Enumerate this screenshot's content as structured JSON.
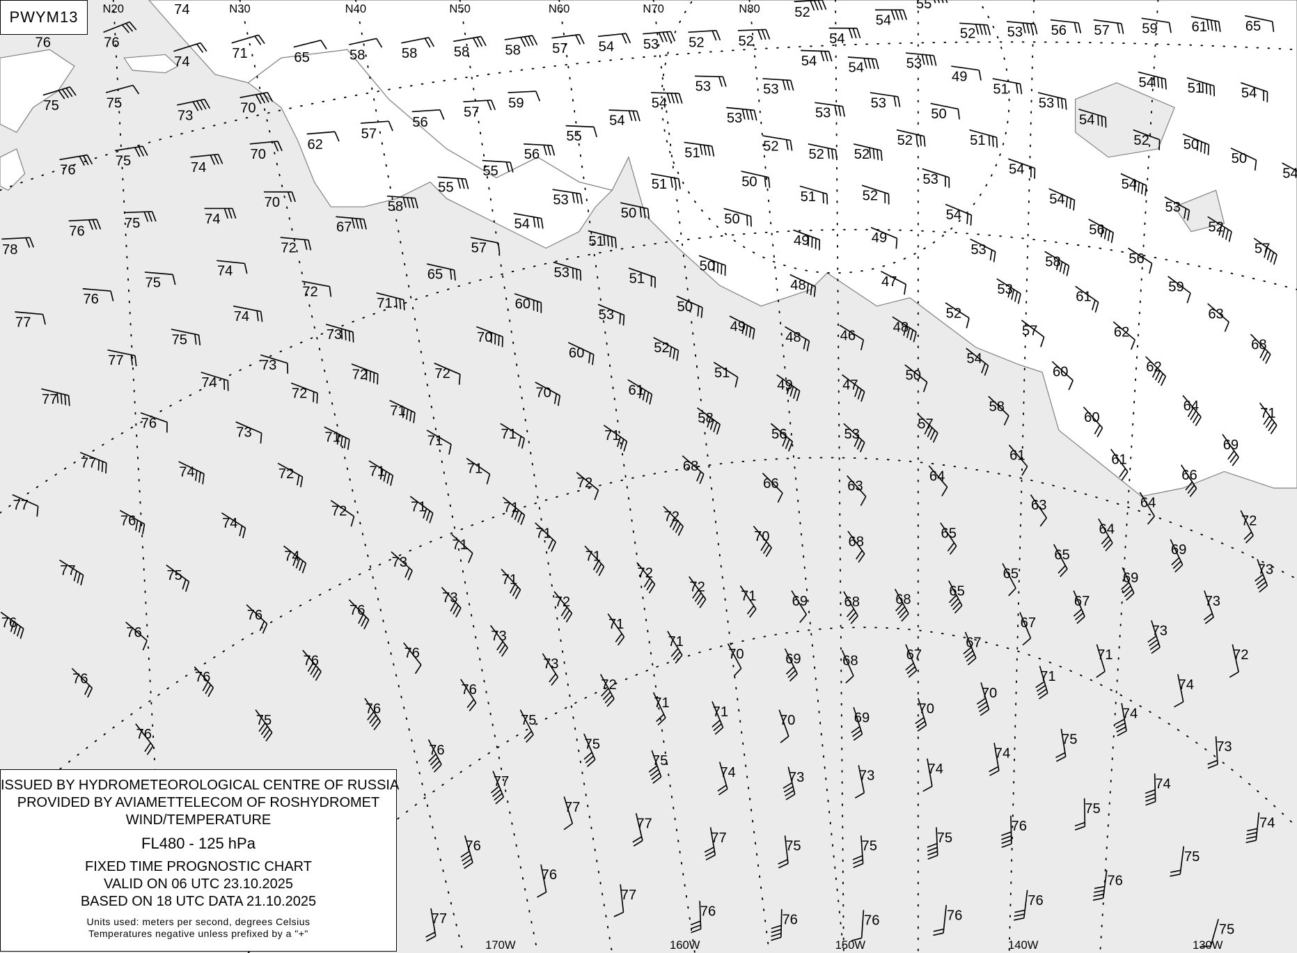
{
  "chart_id": "PWYM13",
  "legend": {
    "issuer": "ISSUED BY HYDROMETEOROLOGICAL CENTRE OF RUSSIA",
    "provider": "PROVIDED BY AVIAMETTELECOM OF ROSHYDROMET",
    "product": "WIND/TEMPERATURE",
    "level": "FL480 - 125 hPa",
    "chart_type": "FIXED TIME PROGNOSTIC CHART",
    "valid": "VALID ON 06 UTC 23.10.2025",
    "based": "BASED ON 18 UTC DATA 21.10.2025",
    "units": "Units used: meters per second, degrees Celsius",
    "note": "Temperatures negative unless prefixed by a \"+\""
  },
  "latitude_labels": [
    "N20",
    "N30",
    "N40",
    "N50",
    "N60",
    "N70",
    "N80"
  ],
  "longitude_labels": [
    "170W",
    "160W",
    "150W",
    "140W",
    "130W"
  ],
  "colors": {
    "sea": "#ebebeb",
    "land": "#ffffff",
    "coast": "#808080",
    "ink": "#000000"
  },
  "temperatures": [
    74,
    76,
    76,
    74,
    71,
    65,
    58,
    58,
    58,
    58,
    57,
    54,
    53,
    52,
    52,
    52,
    54,
    54,
    55,
    52,
    53,
    56,
    57,
    59,
    61,
    65,
    75,
    75,
    73,
    70,
    57,
    59,
    56,
    57,
    62,
    70,
    74,
    75,
    76,
    55,
    54,
    54,
    53,
    53,
    54,
    54,
    53,
    53,
    53,
    52,
    52,
    52,
    53,
    49,
    50,
    53,
    51,
    51,
    52,
    54,
    54,
    54,
    51,
    54,
    52,
    50,
    50,
    54,
    55,
    55,
    56,
    53,
    50,
    51,
    51,
    50,
    51,
    52,
    53,
    54,
    54,
    54,
    53,
    52,
    57,
    58,
    67,
    70,
    74,
    75,
    76,
    78,
    54,
    57,
    51,
    50,
    49,
    49,
    53,
    56,
    56,
    72,
    74,
    75,
    76,
    77,
    65,
    53,
    51,
    50,
    48,
    47,
    53,
    58,
    61,
    59,
    72,
    71,
    60,
    74,
    73,
    70,
    53,
    50,
    49,
    48,
    46,
    48,
    52,
    57,
    62,
    63,
    75,
    73,
    77,
    72,
    72,
    60,
    52,
    51,
    49,
    47,
    50,
    54,
    60,
    62,
    68,
    74,
    77,
    72,
    71,
    70,
    61,
    58,
    58,
    64,
    76,
    73,
    71,
    71,
    71,
    71,
    56,
    53,
    57,
    60,
    71,
    77,
    74,
    72,
    71,
    71,
    72,
    68,
    66,
    63,
    64,
    61,
    61,
    69,
    66,
    77,
    76,
    74,
    72,
    71,
    71,
    72,
    70,
    68,
    65,
    63,
    64,
    72,
    64,
    77,
    75,
    74,
    73,
    71,
    71,
    71,
    72,
    72,
    71,
    69,
    68,
    68,
    65,
    65,
    65,
    69,
    73,
    71,
    72,
    73,
    69,
    67,
    73,
    76,
    76,
    76,
    76,
    73,
    71,
    71,
    70,
    69,
    68,
    67,
    67,
    67,
    73,
    76,
    76,
    76,
    76,
    76,
    73,
    72,
    71,
    71,
    70,
    69,
    70,
    70,
    71,
    71,
    72,
    76,
    75,
    76,
    75,
    75,
    75,
    74,
    73,
    73,
    74,
    74,
    75,
    74,
    74,
    76,
    77,
    77,
    77,
    77,
    75,
    75,
    75,
    76,
    75,
    74,
    73,
    76,
    76,
    77,
    76,
    76,
    76,
    76,
    76,
    76,
    75,
    74,
    77,
    75
  ]
}
